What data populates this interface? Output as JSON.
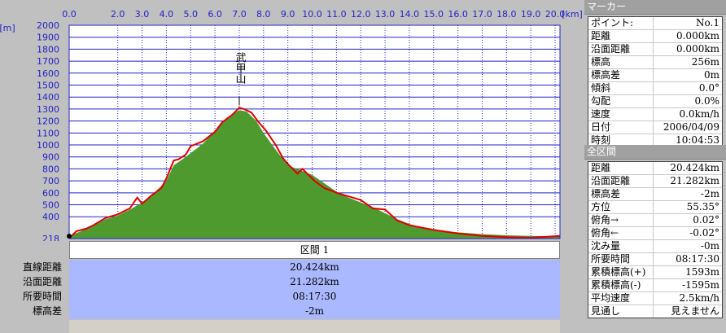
{
  "chart_data": {
    "type": "area",
    "x_unit": "[km]",
    "y_unit": "[m]",
    "x_ticks": [
      "0.0",
      "2.0",
      "3.0",
      "4.0",
      "5.0",
      "6.0",
      "7.0",
      "8.0",
      "9.0",
      "10.0",
      "11.0",
      "12.0",
      "13.0",
      "14.0",
      "15.0",
      "16.0",
      "17.0",
      "18.0",
      "19.0",
      "20.0"
    ],
    "y_ticks": [
      "2000",
      "1900",
      "1800",
      "1700",
      "1600",
      "1500",
      "1400",
      "1300",
      "1200",
      "1100",
      "1000",
      "900",
      "800",
      "700",
      "600",
      "500",
      "400",
      "218"
    ],
    "xlim": [
      0,
      20.2
    ],
    "ylim": [
      218,
      2000
    ],
    "peak_label": "武甲山",
    "peak_x": 7.0,
    "peak_y": 1304,
    "series": [
      {
        "type": "area",
        "x": [
          0.0,
          0.5,
          1.0,
          1.5,
          2.0,
          2.5,
          3.0,
          3.5,
          4.0,
          4.3,
          4.8,
          5.5,
          6.0,
          6.5,
          7.0,
          7.3,
          7.7,
          8.0,
          8.5,
          9.0,
          9.5,
          10.0,
          10.5,
          11.0,
          11.5,
          12.0,
          12.5,
          13.0,
          13.5,
          14.0,
          14.5,
          15.0,
          16.0,
          17.0,
          18.0,
          19.0,
          20.2
        ],
        "y": [
          240,
          280,
          330,
          380,
          410,
          460,
          520,
          600,
          700,
          830,
          900,
          1010,
          1120,
          1230,
          1290,
          1280,
          1200,
          1100,
          960,
          830,
          790,
          750,
          680,
          610,
          560,
          520,
          480,
          430,
          380,
          340,
          310,
          290,
          270,
          255,
          245,
          240,
          236
        ]
      },
      {
        "type": "line",
        "x": [
          0.0,
          0.3,
          0.7,
          1.0,
          1.5,
          2.0,
          2.5,
          2.8,
          3.0,
          3.4,
          3.8,
          4.0,
          4.3,
          4.5,
          4.8,
          5.0,
          5.5,
          6.0,
          6.3,
          6.7,
          7.0,
          7.2,
          7.5,
          7.8,
          8.1,
          8.5,
          8.8,
          9.0,
          9.4,
          9.6,
          9.8,
          10.1,
          10.5,
          10.9,
          11.0,
          11.5,
          12.0,
          12.5,
          13.0,
          13.5,
          14.0,
          14.5,
          15.0,
          16.0,
          17.0,
          18.0,
          19.0,
          20.2
        ],
        "y": [
          220,
          280,
          300,
          330,
          390,
          420,
          470,
          560,
          510,
          580,
          640,
          720,
          870,
          880,
          920,
          990,
          1030,
          1110,
          1190,
          1250,
          1310,
          1300,
          1270,
          1190,
          1120,
          1000,
          890,
          840,
          760,
          800,
          760,
          700,
          640,
          610,
          600,
          570,
          540,
          470,
          460,
          370,
          330,
          310,
          290,
          260,
          240,
          230,
          225,
          240
        ]
      }
    ],
    "colors": {
      "area_fill": "#4f9a2e",
      "line": "#e00000",
      "plot_bg": "#ffffff",
      "grid": "#2323c8"
    }
  },
  "section": {
    "header": "区間 1",
    "labels": [
      "直線距離",
      "沿面距離",
      "所要時間",
      "標高差"
    ],
    "values": [
      "20.424km",
      "21.282km",
      "08:17:30",
      "-2m"
    ]
  },
  "marker_panel": {
    "title": "マーカー",
    "rows": [
      {
        "key": "ポイント:",
        "val": "No.1"
      },
      {
        "key": "距離",
        "val": "0.000km"
      },
      {
        "key": "沿面距離",
        "val": "0.000km"
      },
      {
        "key": "標高",
        "val": "256m"
      },
      {
        "key": "標高差",
        "val": "0m"
      },
      {
        "key": "傾斜",
        "val": "0.0°"
      },
      {
        "key": "勾配",
        "val": "0.0%"
      },
      {
        "key": "速度",
        "val": "0.0km/h"
      },
      {
        "key": "日付",
        "val": "2006/04/09"
      },
      {
        "key": "時刻",
        "val": "10:04:53"
      }
    ]
  },
  "total_panel": {
    "title": "全区間",
    "rows": [
      {
        "key": "距離",
        "val": "20.424km"
      },
      {
        "key": "沿面距離",
        "val": "21.282km"
      },
      {
        "key": "標高差",
        "val": "-2m"
      },
      {
        "key": "方位",
        "val": "55.35°"
      },
      {
        "key": "俯角→",
        "val": "0.02°"
      },
      {
        "key": "俯角←",
        "val": "-0.02°"
      },
      {
        "key": "沈み量",
        "val": "-0m"
      },
      {
        "key": "所要時間",
        "val": "08:17:30"
      },
      {
        "key": "累積標高(+)",
        "val": "1593m"
      },
      {
        "key": "累積標高(-)",
        "val": "-1595m"
      },
      {
        "key": "平均速度",
        "val": "2.5km/h"
      },
      {
        "key": "見通し",
        "val": "見えません"
      }
    ]
  }
}
